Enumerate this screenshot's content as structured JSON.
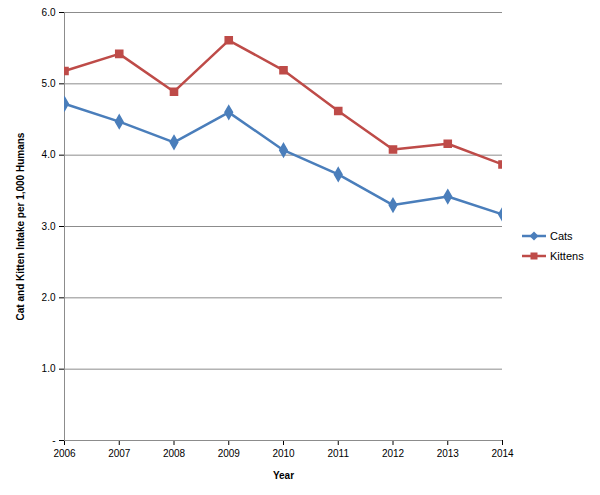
{
  "chart_data": {
    "type": "line",
    "x": [
      2006,
      2007,
      2008,
      2009,
      2010,
      2011,
      2012,
      2013,
      2014
    ],
    "series": [
      {
        "name": "Cats",
        "color": "#4a7ebb",
        "marker": "diamond",
        "values": [
          4.72,
          4.47,
          4.18,
          4.6,
          4.07,
          3.73,
          3.3,
          3.42,
          3.17
        ]
      },
      {
        "name": "Kittens",
        "color": "#be4b48",
        "marker": "square",
        "values": [
          5.18,
          5.42,
          4.89,
          5.61,
          5.19,
          4.62,
          4.08,
          4.16,
          3.87
        ]
      }
    ],
    "x_label": "Year",
    "y_label": "Cat and Kitten Intake per 1,000 Humans",
    "xlim": [
      2006,
      2014
    ],
    "xticks": [
      2006,
      2007,
      2008,
      2009,
      2010,
      2011,
      2012,
      2013,
      2014
    ],
    "ylim": [
      0,
      6
    ],
    "yticks": [
      {
        "value": 0,
        "label": "-"
      },
      {
        "value": 1,
        "label": "1.0"
      },
      {
        "value": 2,
        "label": "2.0"
      },
      {
        "value": 3,
        "label": "3.0"
      },
      {
        "value": 4,
        "label": "4.0"
      },
      {
        "value": 5,
        "label": "5.0"
      },
      {
        "value": 6,
        "label": "6.0"
      }
    ],
    "grid": true,
    "legend": "right"
  }
}
